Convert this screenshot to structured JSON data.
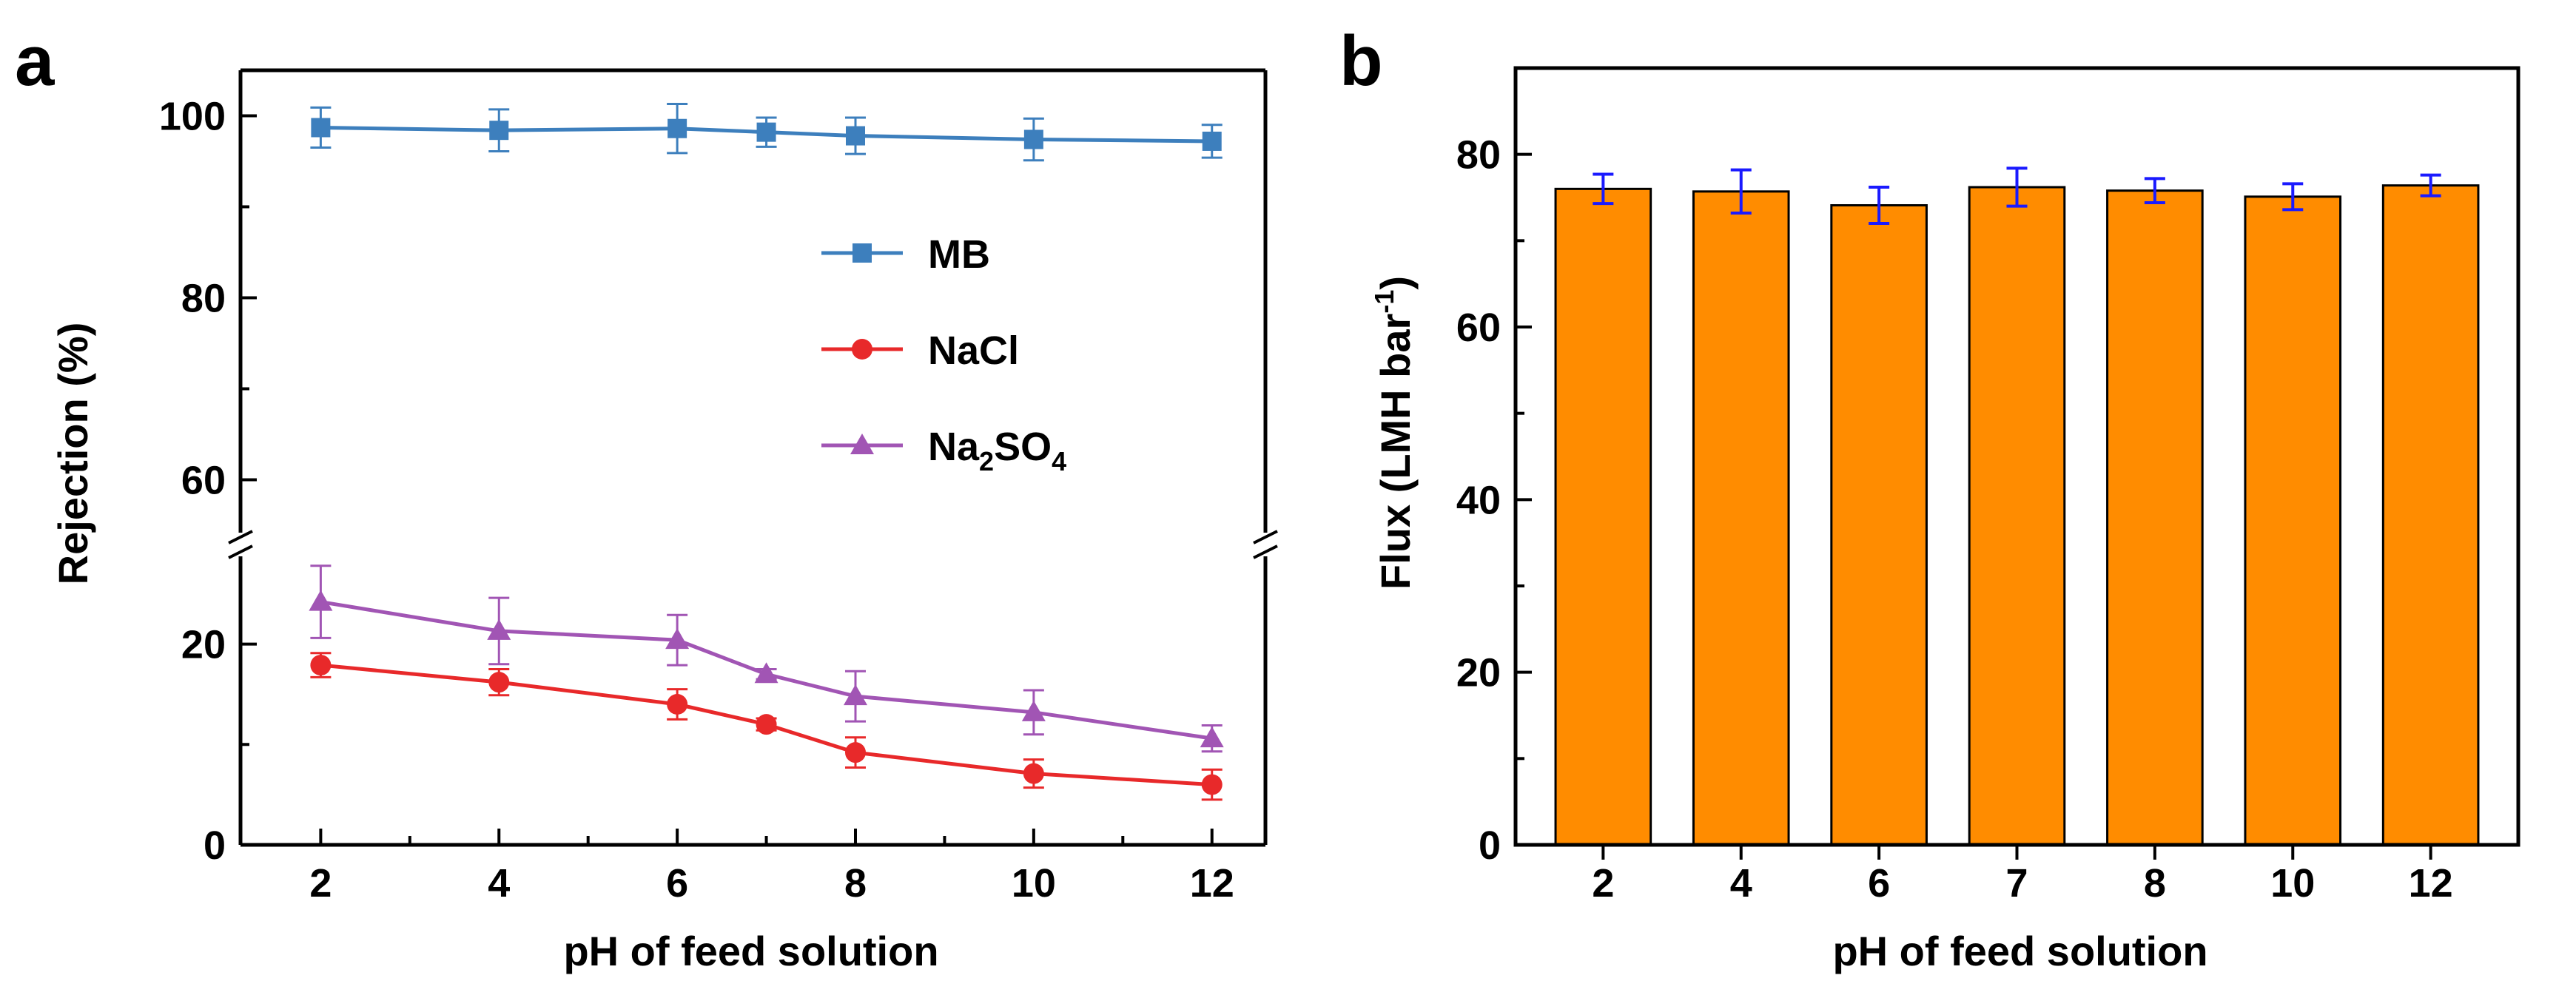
{
  "chart_data": [
    {
      "panel": "a",
      "type": "line",
      "xlabel": "pH of feed solution",
      "ylabel": "Rejection (%)",
      "xlim": [
        1.1,
        12.6
      ],
      "x_ticks": [
        "2",
        "4",
        "6",
        "8",
        "10",
        "12"
      ],
      "y_axis_break": true,
      "ylim_lower": [
        0,
        28
      ],
      "ylim_upper": [
        55,
        105
      ],
      "y_ticks_lower": [
        "0",
        "20"
      ],
      "y_ticks_upper": [
        "60",
        "80",
        "100"
      ],
      "legend_position": "center-right",
      "series": [
        {
          "name": "MB",
          "marker": "square",
          "color": "#3d7fbd",
          "x": [
            2,
            4,
            6,
            7,
            8,
            10,
            12
          ],
          "values": [
            98.7,
            98.4,
            98.6,
            98.2,
            97.8,
            97.4,
            97.2
          ],
          "errors": [
            2.2,
            2.3,
            2.7,
            1.6,
            2.0,
            2.3,
            1.8
          ]
        },
        {
          "name": "NaCl",
          "marker": "circle",
          "color": "#e8292a",
          "x": [
            2,
            4,
            6,
            7,
            8,
            10,
            12
          ],
          "values": [
            17.9,
            16.2,
            14.0,
            12.0,
            9.2,
            7.1,
            6.0
          ],
          "errors": [
            1.2,
            1.3,
            1.5,
            0.6,
            1.5,
            1.4,
            1.5
          ]
        },
        {
          "name": "Na2SO4",
          "label_main": "Na",
          "label_sub1": "2",
          "label_mid": "SO",
          "label_sub2": "4",
          "marker": "triangle",
          "color": "#a155b4",
          "x": [
            2,
            4,
            6,
            7,
            8,
            10,
            12
          ],
          "values": [
            24.2,
            21.3,
            20.4,
            17.0,
            14.8,
            13.2,
            10.6
          ],
          "errors": [
            3.6,
            3.3,
            2.5,
            0.5,
            2.5,
            2.2,
            1.3
          ]
        }
      ]
    },
    {
      "panel": "b",
      "type": "bar",
      "xlabel": "pH of feed solution",
      "ylabel_main": "Flux (LMH bar",
      "ylabel_sup": "-1",
      "ylabel_close": ")",
      "categories": [
        "2",
        "4",
        "6",
        "7",
        "8",
        "10",
        "12"
      ],
      "values": [
        76.0,
        75.7,
        74.1,
        76.2,
        75.8,
        75.1,
        76.4
      ],
      "errors": [
        1.7,
        2.5,
        2.1,
        2.2,
        1.4,
        1.5,
        1.2
      ],
      "ylim": [
        0,
        90
      ],
      "y_ticks": [
        "0",
        "20",
        "40",
        "60",
        "80"
      ],
      "bar_color": "#ff8c00",
      "error_color": "#1a1aff"
    }
  ]
}
